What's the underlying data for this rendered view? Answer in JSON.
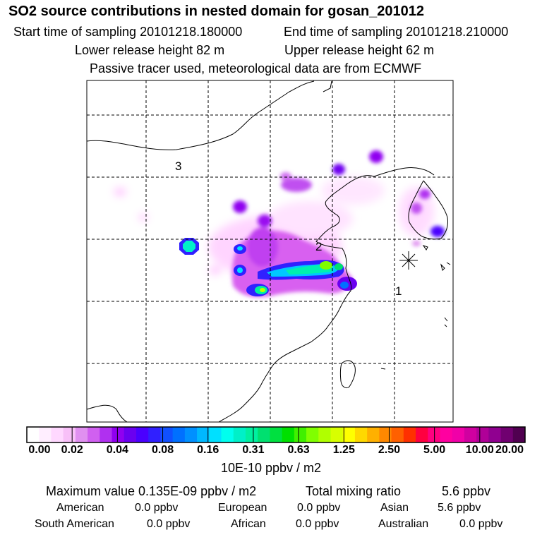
{
  "header": {
    "title": "SO2 source contributions in nested domain for gosan_201012",
    "start_label": "Start time of sampling 20101218.180000",
    "end_label": "End time of sampling 20101218.210000",
    "lower_label": "Lower release height   82 m",
    "upper_label": "Upper release height   62 m",
    "note": "Passive tracer used, meteorological data are from ECMWF"
  },
  "map": {
    "region_labels": [
      "3",
      "2",
      "1"
    ],
    "receptor_marker": "asterisk-station-icon"
  },
  "colorbar": {
    "tick_labels": [
      "0.00",
      "0.02",
      "0.04",
      "0.08",
      "0.16",
      "0.31",
      "0.63",
      "1.25",
      "2.50",
      "5.00",
      "10.00",
      "20.00"
    ],
    "unit": "10E-10 ppbv / m2",
    "colors": [
      "#ffffff",
      "#ffeeff",
      "#ffd8ff",
      "#f8c0f8",
      "#e090f0",
      "#d060f0",
      "#b030f0",
      "#9000f0",
      "#6a00f0",
      "#4a00ff",
      "#3020ff",
      "#1050ff",
      "#0070ff",
      "#0090ff",
      "#00b8ff",
      "#00e0ff",
      "#00ffee",
      "#00f0c8",
      "#00f0a0",
      "#00e070",
      "#00e040",
      "#00e000",
      "#40f000",
      "#80ff00",
      "#b0ff00",
      "#d8ff00",
      "#ffff00",
      "#ffd800",
      "#ffb000",
      "#ff8800",
      "#ff6000",
      "#ff3000",
      "#ff0040",
      "#ff0080",
      "#ff00a0",
      "#f000a8",
      "#d000a0",
      "#b00098",
      "#900090",
      "#700070",
      "#500050"
    ]
  },
  "stats": {
    "max_label": "Maximum value  0.135E-09 ppbv / m2",
    "total_label": "Total mixing ratio",
    "total_value": "5.6 ppbv",
    "american_label": "American",
    "american_value": "0.0 ppbv",
    "european_label": "European",
    "european_value": "0.0 ppbv",
    "asian_label": "Asian",
    "asian_value": "5.6 ppbv",
    "south_american_label": "South American",
    "south_american_value": "0.0 ppbv",
    "african_label": "African",
    "african_value": "0.0 ppbv",
    "australian_label": "Australian",
    "australian_value": "0.0 ppbv"
  }
}
